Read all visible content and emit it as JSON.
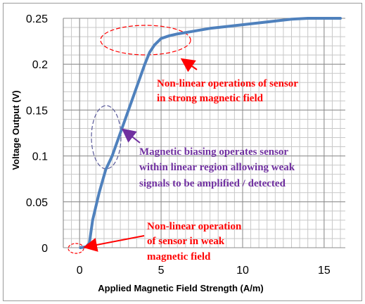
{
  "chart_data": {
    "type": "line",
    "title": "",
    "xlabel": "Applied Magnetic Field  Strength (A/m)",
    "ylabel": "Voltage Output (V)",
    "xlim": [
      -1,
      16.3
    ],
    "ylim": [
      0,
      0.25
    ],
    "x_ticks": [
      "0",
      "5",
      "10",
      "15"
    ],
    "y_ticks": [
      "0",
      "0.05",
      "0.1",
      "0.15",
      "0.2",
      "0.25"
    ],
    "x_tick_values": [
      0,
      5,
      10,
      15
    ],
    "y_tick_values": [
      0,
      0.05,
      0.1,
      0.15,
      0.2,
      0.25
    ],
    "grid": true,
    "line_color": "#4f81bd",
    "series": [
      {
        "x": [
          0.05,
          0.4,
          0.6,
          0.8,
          1.2,
          1.6,
          2.0,
          2.5,
          3.0,
          3.5,
          4.0,
          4.3,
          4.6,
          5.0,
          5.5,
          6.0,
          7.0,
          8.0,
          9.0,
          10.0,
          11.0,
          12.0,
          13.0,
          14.0,
          15.0,
          16.0
        ],
        "y": [
          0.0,
          0.001,
          0.005,
          0.03,
          0.06,
          0.085,
          0.1,
          0.125,
          0.15,
          0.175,
          0.2,
          0.213,
          0.221,
          0.228,
          0.231,
          0.233,
          0.236,
          0.239,
          0.241,
          0.243,
          0.245,
          0.247,
          0.249,
          0.25,
          0.25,
          0.25
        ]
      }
    ],
    "annotations": [
      {
        "lines": [
          "Non-linear operations of sensor",
          "in strong magnetic field"
        ],
        "color": "#ff0000"
      },
      {
        "lines": [
          "Magnetic biasing operates sensor",
          "within linear region allowing weak",
          "signals to be amplified / detected"
        ],
        "color": "#7030a0"
      },
      {
        "lines": [
          "Non-linear operation",
          "of sensor in weak",
          "magnetic field"
        ],
        "color": "#ff0000"
      }
    ]
  }
}
